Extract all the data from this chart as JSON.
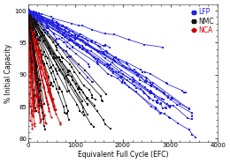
{
  "title": "",
  "xlabel": "Equivalent Full Cycle (EFC)",
  "ylabel": "% Initial Capacity",
  "xlim": [
    0,
    4000
  ],
  "ylim": [
    79.5,
    101
  ],
  "yticks": [
    80,
    85,
    90,
    95,
    100
  ],
  "xticks": [
    0,
    1000,
    2000,
    3000,
    4000
  ],
  "legend_labels": [
    "LFP",
    "NMC",
    "NCA"
  ],
  "legend_colors": [
    "#2222dd",
    "#111111",
    "#cc0000"
  ],
  "bg_color": "#ffffff",
  "lfp_color": "#2222dd",
  "nmc_color": "#111111",
  "nca_color": "#cc0000"
}
